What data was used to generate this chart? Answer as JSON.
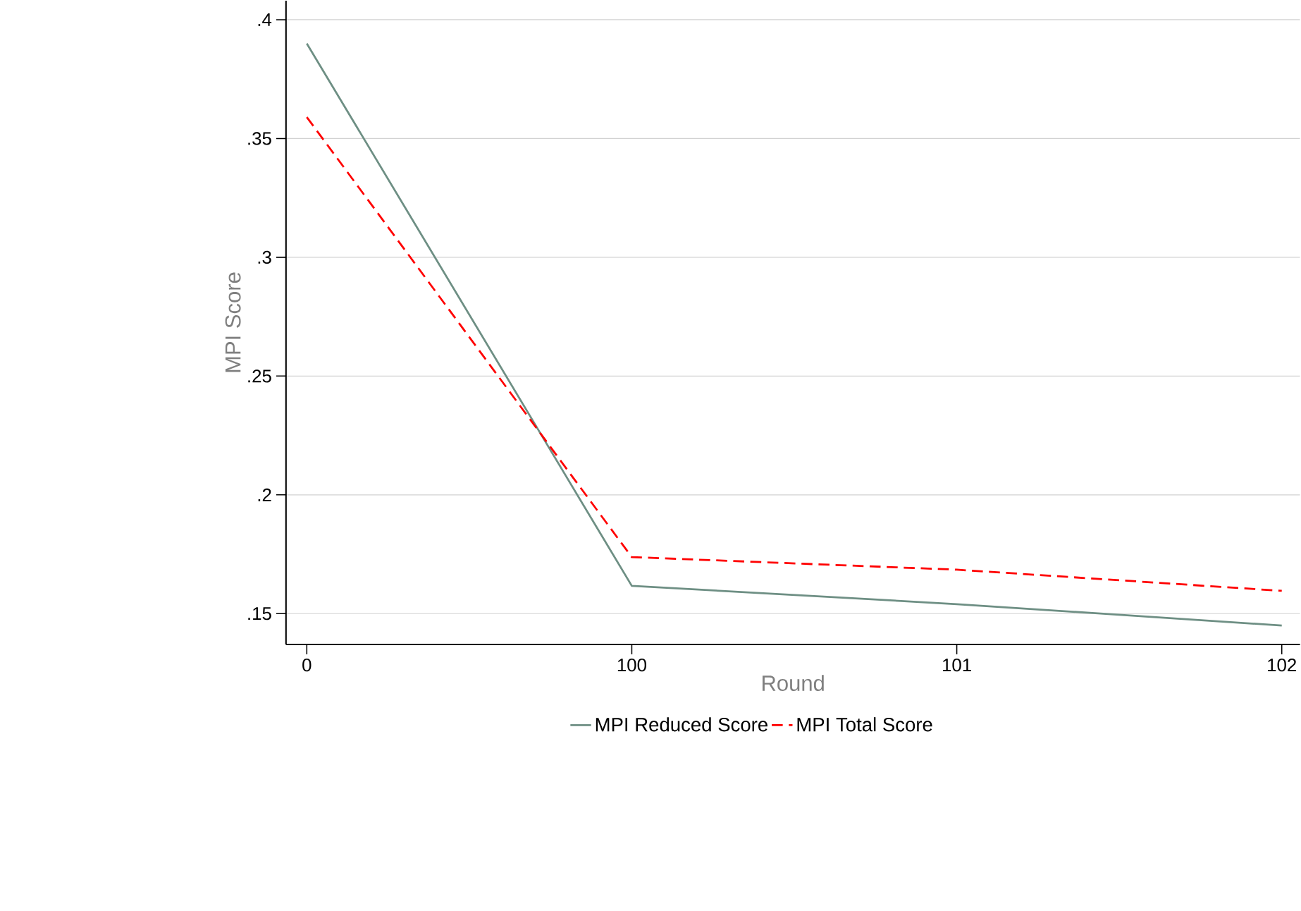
{
  "chart_data": {
    "type": "line",
    "xlabel": "Round",
    "ylabel": "MPI Score",
    "categories": [
      "0",
      "100",
      "101",
      "102"
    ],
    "series": [
      {
        "name": "MPI Reduced Score",
        "color": "#6e8f84",
        "line_style": "solid",
        "values": [
          0.39,
          0.1617,
          0.154,
          0.145
        ]
      },
      {
        "name": "MPI Total Score",
        "color": "#ff0000",
        "line_style": "dashed",
        "values": [
          0.359,
          0.1738,
          0.1685,
          0.1596
        ]
      }
    ],
    "ylim": [
      0.137,
      0.408
    ],
    "yticks": [
      {
        "value": 0.15,
        "label": ".15"
      },
      {
        "value": 0.2,
        "label": ".2"
      },
      {
        "value": 0.25,
        "label": ".25"
      },
      {
        "value": 0.3,
        "label": ".3"
      },
      {
        "value": 0.35,
        "label": ".35"
      },
      {
        "value": 0.4,
        "label": ".4"
      }
    ],
    "grid": "y",
    "legend": "bottom",
    "marker": "none"
  }
}
